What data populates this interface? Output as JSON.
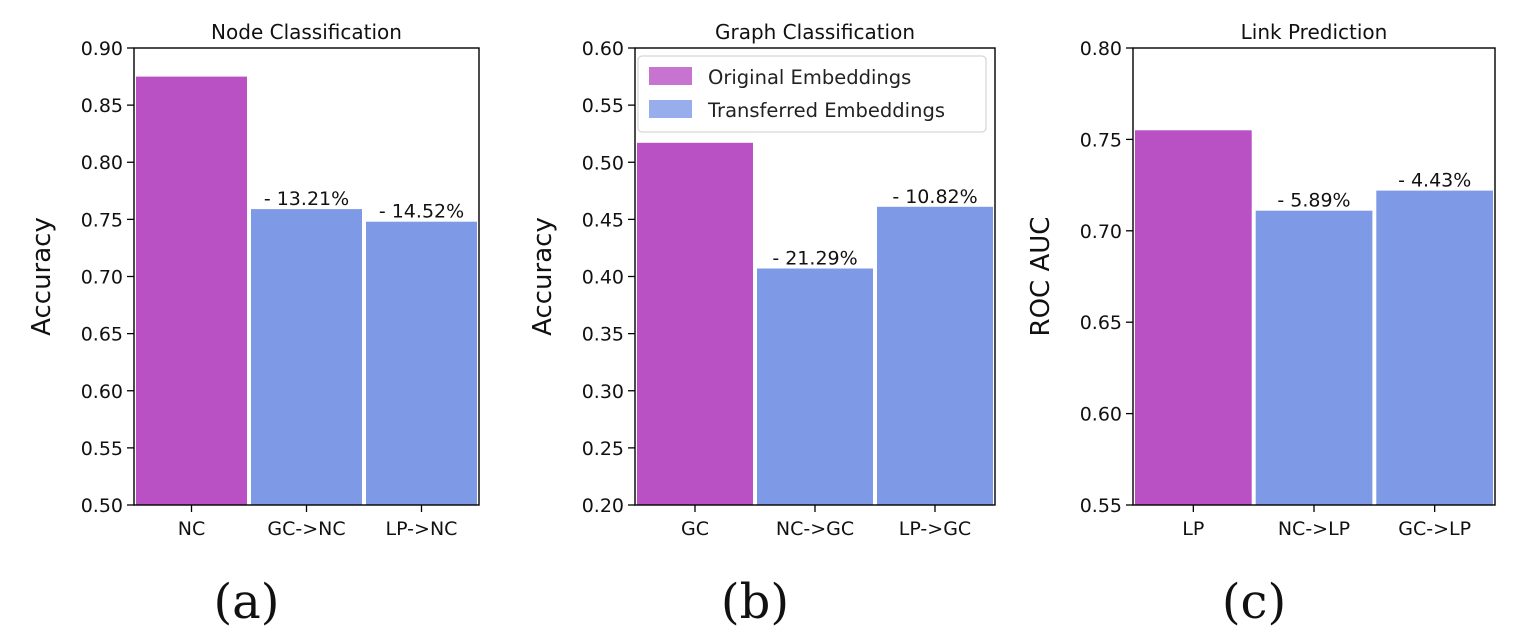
{
  "colors": {
    "original": "#b950c4",
    "transferred": "#7e99e6"
  },
  "legend": {
    "original": "Original Embeddings",
    "transferred": "Transferred Embeddings",
    "placement": "upper-right (panel b)"
  },
  "chart_data": [
    {
      "type": "bar",
      "title": "Node Classification",
      "ylabel": "Accuracy",
      "ylim": [
        0.5,
        0.9
      ],
      "yticks": [
        "0.50",
        "0.55",
        "0.60",
        "0.65",
        "0.70",
        "0.75",
        "0.80",
        "0.85",
        "0.90"
      ],
      "categories": [
        "NC",
        "GC->NC",
        "LP->NC"
      ],
      "values": [
        0.875,
        0.759,
        0.748
      ],
      "kinds": [
        "original",
        "transferred",
        "transferred"
      ],
      "bar_labels": [
        "",
        "- 13.21%",
        "- 14.52%"
      ],
      "panel_label": "(a)",
      "grid": false
    },
    {
      "type": "bar",
      "title": "Graph Classification",
      "ylabel": "Accuracy",
      "ylim": [
        0.2,
        0.6
      ],
      "yticks": [
        "0.20",
        "0.25",
        "0.30",
        "0.35",
        "0.40",
        "0.45",
        "0.50",
        "0.55",
        "0.60"
      ],
      "categories": [
        "GC",
        "NC->GC",
        "LP->GC"
      ],
      "values": [
        0.517,
        0.407,
        0.461
      ],
      "kinds": [
        "original",
        "transferred",
        "transferred"
      ],
      "bar_labels": [
        "",
        "- 21.29%",
        "- 10.82%"
      ],
      "panel_label": "(b)",
      "grid": false,
      "show_legend": true
    },
    {
      "type": "bar",
      "title": "Link Prediction",
      "ylabel": "ROC AUC",
      "ylim": [
        0.55,
        0.8
      ],
      "yticks": [
        "0.55",
        "0.60",
        "0.65",
        "0.70",
        "0.75",
        "0.80"
      ],
      "categories": [
        "LP",
        "NC->LP",
        "GC->LP"
      ],
      "values": [
        0.755,
        0.711,
        0.722
      ],
      "kinds": [
        "original",
        "transferred",
        "transferred"
      ],
      "bar_labels": [
        "",
        "- 5.89%",
        "- 4.43%"
      ],
      "panel_label": "(c)",
      "grid": false
    }
  ]
}
